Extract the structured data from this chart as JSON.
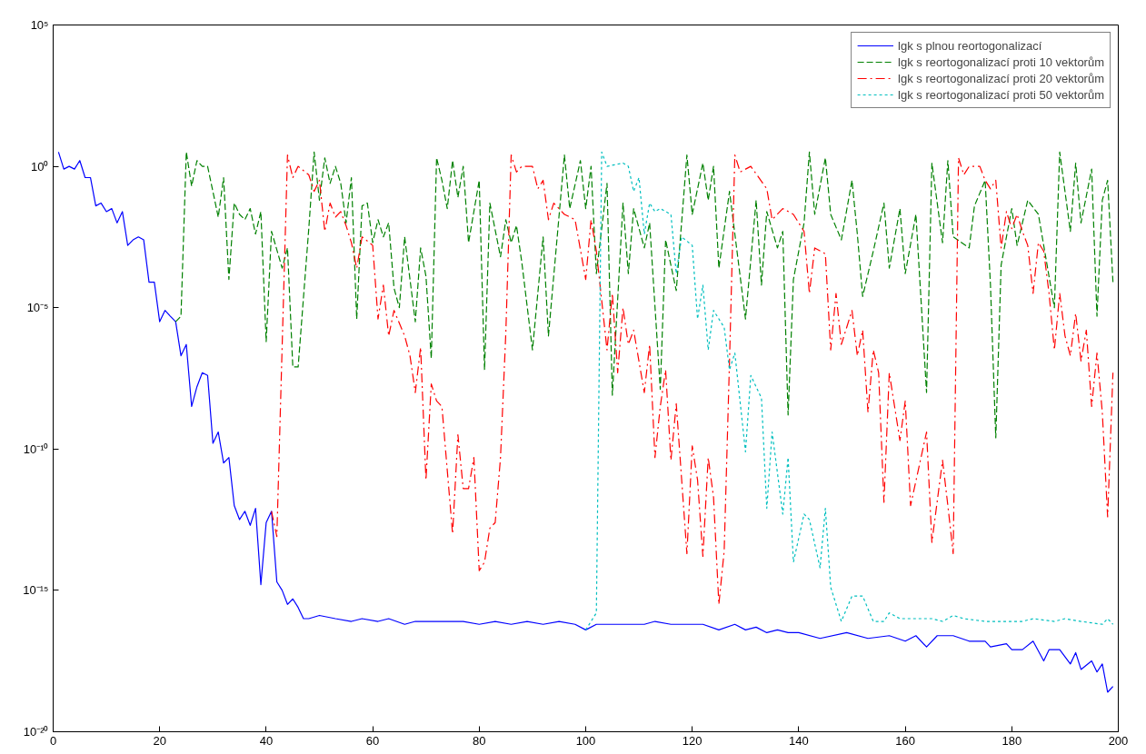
{
  "chart_data": {
    "type": "line",
    "xlim": [
      0,
      200
    ],
    "xticks": [
      0,
      20,
      40,
      60,
      80,
      100,
      120,
      140,
      160,
      180,
      200
    ],
    "ylim": [
      1e-20,
      100000.0
    ],
    "log": true,
    "yticks": [
      {
        "value": 1e-20,
        "label": "10⁻²⁰"
      },
      {
        "value": 1e-15,
        "label": "10⁻¹⁵"
      },
      {
        "value": 1e-10,
        "label": "10⁻¹⁰"
      },
      {
        "value": 1e-05,
        "label": "10⁻⁵"
      },
      {
        "value": 1,
        "label": "10⁰"
      },
      {
        "value": 100000.0,
        "label": "10⁵"
      }
    ],
    "grid": false,
    "legend": "top right",
    "marker": "none",
    "series": [
      {
        "name": "lgk s plnou reortogonalizací",
        "color": "#0000ff",
        "line_style": "solid",
        "x": [
          1,
          2,
          3,
          4,
          5,
          6,
          7,
          8,
          9,
          10,
          11,
          12,
          13,
          14,
          15,
          16,
          17,
          18,
          19,
          20,
          21,
          22,
          23,
          24,
          25,
          26,
          27,
          28,
          29,
          30,
          31,
          32,
          33,
          34,
          35,
          36,
          37,
          38,
          39,
          40,
          41,
          42,
          43,
          44,
          45,
          46,
          47,
          48,
          50,
          53,
          56,
          58,
          61,
          63,
          66,
          68,
          71,
          74,
          77,
          80,
          83,
          86,
          89,
          92,
          95,
          98,
          100,
          102,
          105,
          108,
          111,
          113,
          116,
          119,
          122,
          125,
          128,
          130,
          132,
          134,
          136,
          138,
          140,
          144,
          149,
          153,
          157,
          160,
          162,
          164,
          166,
          169,
          172,
          175,
          176,
          179,
          180,
          182,
          184,
          186,
          187,
          189,
          191,
          192,
          193,
          195,
          196,
          197,
          198,
          199
        ],
        "values": [
          3.2,
          0.8,
          1,
          0.8,
          1.6,
          0.4,
          0.4,
          0.04,
          0.05,
          0.025,
          0.032,
          0.01,
          0.025,
          0.0016,
          0.0025,
          0.0032,
          0.0025,
          8e-05,
          8e-05,
          3.2e-06,
          8e-06,
          5e-06,
          3.2e-06,
          2e-07,
          5e-07,
          3.2e-09,
          1.6e-08,
          5e-08,
          4e-08,
          1.6e-10,
          4e-10,
          3.2e-11,
          5e-11,
          1e-12,
          3.2e-13,
          6.3e-13,
          2e-13,
          8e-13,
          1.6e-15,
          2.5e-13,
          6.3e-13,
          2e-15,
          1e-15,
          3.2e-16,
          5e-16,
          2.5e-16,
          1e-16,
          1e-16,
          1.3e-16,
          1e-16,
          8e-17,
          1e-16,
          8e-17,
          1e-16,
          6.3e-17,
          8e-17,
          8e-17,
          8e-17,
          8e-17,
          6.3e-17,
          8e-17,
          6.3e-17,
          8e-17,
          6.3e-17,
          8e-17,
          6.3e-17,
          4e-17,
          6.3e-17,
          6.3e-17,
          6.3e-17,
          6.3e-17,
          8e-17,
          6.3e-17,
          6.3e-17,
          6.3e-17,
          4e-17,
          6.3e-17,
          4e-17,
          5e-17,
          3.2e-17,
          4e-17,
          3.2e-17,
          3.2e-17,
          2e-17,
          3.2e-17,
          2e-17,
          2.5e-17,
          1.6e-17,
          2.5e-17,
          1e-17,
          2.5e-17,
          2.5e-17,
          1.6e-17,
          1.6e-17,
          1e-17,
          1.3e-17,
          8e-18,
          8e-18,
          1.6e-17,
          3.2e-18,
          8e-18,
          8e-18,
          2.5e-18,
          6.3e-18,
          1.6e-18,
          3.2e-18,
          1.3e-18,
          2.5e-18,
          2.5e-19,
          4e-19
        ]
      },
      {
        "name": "lgk s reortogonalizací proti 10 vektorům",
        "color": "#008000",
        "line_style": "dashed",
        "x": [
          23,
          24,
          25,
          26,
          27,
          28,
          29,
          31,
          32,
          33,
          34,
          35,
          36,
          37,
          38,
          39,
          40,
          41,
          43,
          44,
          45,
          46,
          48,
          49,
          50,
          51,
          52,
          53,
          54,
          55,
          56,
          57,
          58,
          59,
          60,
          61,
          62,
          63,
          64,
          65,
          66,
          68,
          69,
          70,
          71,
          72,
          73,
          74,
          75,
          76,
          77,
          78,
          80,
          81,
          82,
          84,
          85,
          86,
          87,
          88,
          90,
          92,
          93,
          96,
          97,
          99,
          100,
          101,
          102,
          104,
          105,
          107,
          108,
          109,
          111,
          112,
          114,
          115,
          117,
          119,
          120,
          122,
          123,
          124,
          125,
          127,
          130,
          132,
          133,
          134,
          136,
          137,
          138,
          139,
          141,
          142,
          143,
          145,
          146,
          148,
          150,
          151,
          152,
          154,
          156,
          157,
          159,
          160,
          162,
          164,
          165,
          167,
          168,
          169,
          172,
          173,
          175,
          176,
          177,
          178,
          180,
          181,
          183,
          185,
          188,
          189,
          191,
          192,
          193,
          195,
          196,
          197,
          198,
          199
        ],
        "values": [
          3.2e-06,
          5e-06,
          3.2,
          0.2,
          1.6,
          1,
          1,
          0.016,
          0.4,
          0.0001,
          0.05,
          0.02,
          0.013,
          0.032,
          0.004,
          0.025,
          6.3e-07,
          0.005,
          0.00025,
          0.0013,
          8e-08,
          8e-08,
          0.0063,
          3.2,
          0.063,
          2,
          0.25,
          1,
          0.25,
          0.01,
          0.4,
          4e-06,
          0.04,
          0.05,
          0.002,
          0.013,
          0.0032,
          0.01,
          5e-05,
          1e-05,
          0.0032,
          3.2e-06,
          0.0013,
          0.00013,
          1.6e-07,
          2,
          0.32,
          0.032,
          1.6,
          0.08,
          1,
          0.002,
          0.32,
          6.3e-08,
          0.05,
          0.00063,
          0.013,
          0.002,
          0.008,
          0.0004,
          3.2e-07,
          0.0032,
          1e-06,
          2.5,
          0.032,
          1.6,
          0.032,
          1,
          0.00016,
          0.25,
          8e-09,
          0.05,
          0.00016,
          0.032,
          0.0013,
          0.01,
          1.3e-08,
          0.0025,
          4e-05,
          2.5,
          0.02,
          1.3,
          0.063,
          1,
          0.00025,
          0.13,
          4e-06,
          0.063,
          6.3e-05,
          0.025,
          0.0013,
          0.005,
          1.6e-09,
          0.0001,
          0.01,
          3.2,
          0.02,
          2,
          0.02,
          0.0025,
          0.32,
          0.004,
          2.5e-05,
          0.001,
          0.05,
          0.00025,
          0.032,
          0.00016,
          0.02,
          1e-08,
          1.3,
          0.002,
          1.6,
          0.0032,
          0.0013,
          0.04,
          0.32,
          6.3e-05,
          2.5e-10,
          0.00032,
          0.032,
          0.0016,
          0.063,
          0.02,
          1e-05,
          3.2,
          0.005,
          1.3,
          0.01,
          0.8,
          5e-06,
          0.063,
          0.32,
          8e-05
        ]
      },
      {
        "name": "lgk s reortogonalizací proti 20 vektorům",
        "color": "#ff0000",
        "line_style": "dashdot",
        "x": [
          41,
          42,
          44,
          45,
          46,
          48,
          49,
          50,
          51,
          52,
          53,
          54,
          55,
          56,
          57,
          58,
          60,
          61,
          62,
          63,
          64,
          66,
          67,
          68,
          69,
          70,
          71,
          72,
          73,
          75,
          76,
          77,
          78,
          79,
          80,
          81,
          82,
          83,
          84,
          85,
          86,
          87,
          88,
          90,
          91,
          92,
          93,
          94,
          96,
          98,
          100,
          101,
          102,
          104,
          105,
          106,
          107,
          108,
          109,
          111,
          112,
          113,
          114,
          115,
          116,
          117,
          119,
          120,
          121,
          122,
          123,
          124,
          125,
          126,
          127,
          128,
          129,
          131,
          134,
          135,
          137,
          139,
          141,
          142,
          143,
          145,
          146,
          147,
          148,
          150,
          151,
          152,
          153,
          154,
          155,
          156,
          157,
          159,
          160,
          161,
          164,
          165,
          167,
          168,
          169,
          170,
          171,
          172,
          174,
          175,
          176,
          177,
          178,
          179,
          180,
          181,
          182,
          183,
          184,
          185,
          186,
          187,
          188,
          189,
          190,
          191,
          192,
          193,
          194,
          195,
          196,
          197,
          198,
          199
        ],
        "values": [
          6.3e-13,
          8e-14,
          2.5,
          0.4,
          1,
          0.5,
          0.13,
          0.32,
          0.005,
          0.05,
          0.016,
          0.025,
          0.008,
          0.002,
          0.00025,
          0.0032,
          0.0016,
          4e-06,
          6.3e-05,
          1e-06,
          8e-06,
          1e-06,
          2e-07,
          1e-08,
          4e-07,
          8e-12,
          2e-08,
          5e-09,
          3.2e-09,
          1e-13,
          3.2e-10,
          4e-12,
          4e-12,
          5e-11,
          5e-15,
          1e-14,
          1.6e-13,
          2.5e-13,
          5e-11,
          1.3e-06,
          2.5,
          0.63,
          1,
          1,
          0.16,
          0.32,
          0.013,
          0.05,
          0.02,
          0.013,
          0.0001,
          0.013,
          0.001,
          3.2e-07,
          3.2e-05,
          5e-08,
          1e-05,
          5e-07,
          1.6e-06,
          1e-08,
          5e-07,
          5e-11,
          3.2e-09,
          6.3e-08,
          4e-11,
          4e-09,
          2e-14,
          1.3e-10,
          8e-12,
          1.6e-14,
          5e-11,
          2e-12,
          3.2e-16,
          2.5e-14,
          1.3e-07,
          2.5,
          0.63,
          1,
          0.16,
          0.013,
          0.032,
          0.02,
          0.005,
          3.2e-05,
          0.0013,
          0.0008,
          3.2e-07,
          3.2e-05,
          5e-07,
          8e-06,
          2e-07,
          1.6e-06,
          2e-09,
          3.2e-07,
          5e-08,
          1.3e-12,
          5e-08,
          2e-10,
          5e-09,
          1e-12,
          4e-10,
          5e-14,
          4e-11,
          1e-12,
          2e-14,
          2,
          0.5,
          1,
          1,
          0.32,
          0.16,
          0.32,
          0.0013,
          0.025,
          0.0063,
          0.02,
          0.005,
          0.0016,
          3.2e-05,
          0.002,
          0.001,
          3.2e-05,
          3.2e-07,
          3.2e-05,
          1e-06,
          2e-07,
          6.3e-06,
          1.3e-07,
          1.6e-06,
          3.2e-09,
          2.5e-07,
          2e-09,
          4e-13,
          5e-08
        ]
      },
      {
        "name": "lgk s reortogonalizací proti 50 vektorům",
        "color": "#00bfbf",
        "line_style": "dotted",
        "x": [
          100,
          102,
          103,
          104,
          107,
          108,
          109,
          110,
          111,
          112,
          113,
          114,
          116,
          117,
          118,
          120,
          121,
          122,
          123,
          124,
          126,
          127,
          128,
          130,
          131,
          133,
          134,
          135,
          137,
          138,
          139,
          141,
          142,
          144,
          145,
          146,
          148,
          150,
          152,
          154,
          156,
          157,
          159,
          162,
          165,
          167,
          169,
          171,
          175,
          178,
          182,
          184,
          188,
          190,
          193,
          197,
          198,
          199
        ],
        "values": [
          4e-17,
          1.6e-16,
          3.2,
          1,
          1.3,
          1,
          0.13,
          0.4,
          0.004,
          0.05,
          0.025,
          0.032,
          0.02,
          0.00016,
          0.0032,
          0.0016,
          4e-06,
          6.3e-05,
          3.2e-07,
          8e-06,
          2e-06,
          6.3e-08,
          2.5e-07,
          8e-11,
          4e-08,
          6.3e-09,
          8e-13,
          4e-10,
          5e-13,
          5e-11,
          1e-14,
          5e-13,
          3.2e-13,
          6.3e-15,
          8e-13,
          1.3e-15,
          8e-17,
          6.3e-16,
          6.3e-16,
          8e-17,
          8e-17,
          1.6e-16,
          1e-16,
          1e-16,
          1e-16,
          8e-17,
          1.3e-16,
          1e-16,
          8e-17,
          8e-17,
          8e-17,
          1e-16,
          8e-17,
          1e-16,
          8e-17,
          6.3e-17,
          1e-16,
          6.3e-17
        ]
      }
    ]
  }
}
